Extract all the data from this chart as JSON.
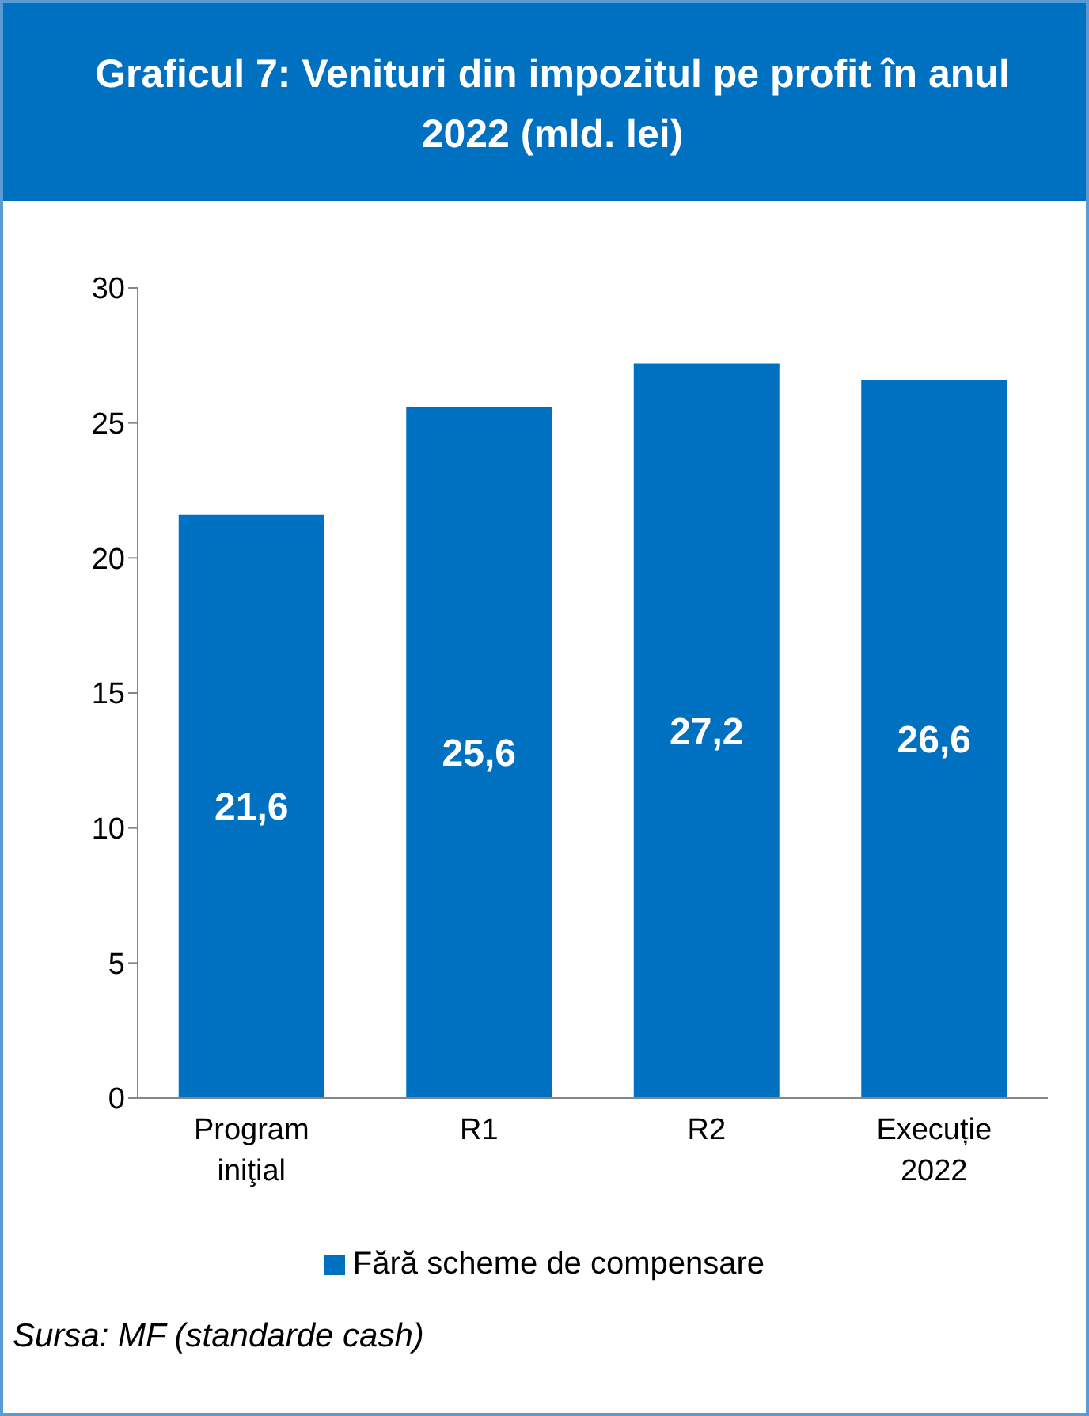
{
  "chart_data": {
    "type": "bar",
    "title": "Graficul 7: Venituri din impozitul pe profit în anul 2022 (mld. lei)",
    "categories": [
      "Program iniţial",
      "R1",
      "R2",
      "Execuție 2022"
    ],
    "series": [
      {
        "name": "Fără scheme de compensare",
        "color": "#0070c0",
        "values": [
          21.6,
          25.6,
          27.2,
          26.6
        ],
        "value_labels": [
          "21,6",
          "25,6",
          "27,2",
          "26,6"
        ]
      }
    ],
    "ylim": [
      0,
      30
    ],
    "yticks": [
      0,
      5,
      10,
      15,
      20,
      25,
      30
    ],
    "legend": "bottom",
    "annotations": [
      "Sursa: MF (standarde cash)"
    ]
  }
}
